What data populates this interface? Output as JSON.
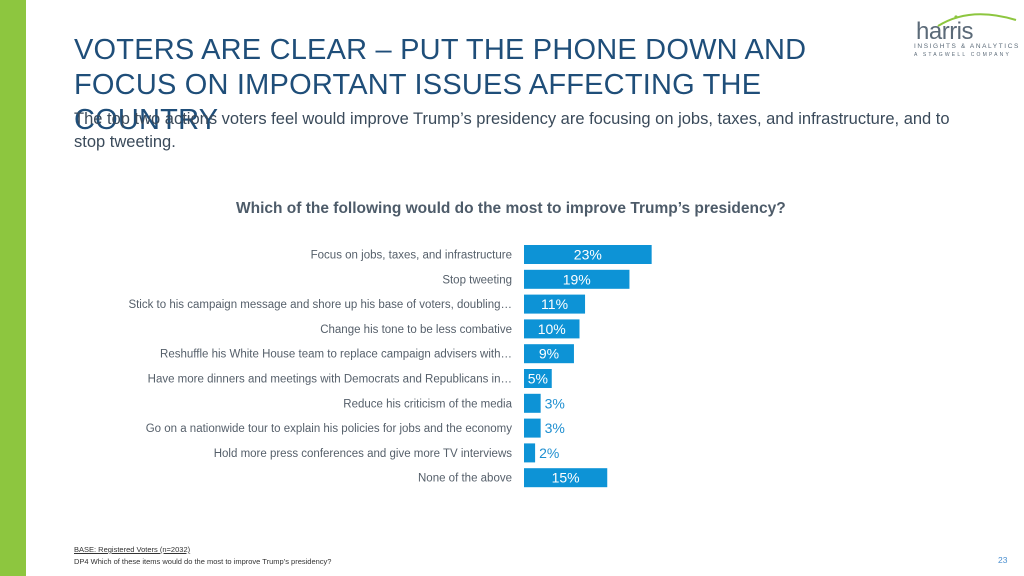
{
  "header": {
    "title": "VOTERS ARE CLEAR – PUT THE PHONE DOWN AND FOCUS ON IMPORTANT ISSUES AFFECTING THE COUNTRY",
    "subtitle": "The top two actions voters feel would improve Trump’s presidency are focusing on jobs, taxes, and infrastructure, and to stop tweeting."
  },
  "logo": {
    "word": "harris",
    "line1": "INSIGHTS & ANALYTICS",
    "line2": "A STAGWELL COMPANY"
  },
  "colors": {
    "accent_green": "#8dc63f",
    "bar_blue": "#0d93d6",
    "title_blue": "#1f4e79"
  },
  "chart_data": {
    "type": "bar",
    "orientation": "horizontal",
    "title": "Which of the following would do the most to improve Trump’s presidency?",
    "categories": [
      "Focus on jobs, taxes, and infrastructure",
      "Stop tweeting",
      "Stick to his campaign message and shore up his base of voters, doubling…",
      "Change his tone to be less combative",
      "Reshuffle his White House team to replace campaign advisers with…",
      "Have more dinners and meetings with Democrats and Republicans in…",
      "Reduce his criticism of the media",
      "Go on a nationwide tour to explain his policies for jobs and the economy",
      "Hold more press conferences and give more TV interviews",
      "None of the above"
    ],
    "values": [
      23,
      19,
      11,
      10,
      9,
      5,
      3,
      3,
      2,
      15
    ],
    "value_labels": [
      "23%",
      "19%",
      "11%",
      "10%",
      "9%",
      "5%",
      "3%",
      "3%",
      "2%",
      "15%"
    ],
    "xlim": [
      0,
      100
    ],
    "grid": false,
    "legend": "none"
  },
  "footer": {
    "base": "BASE: Registered Voters (n=2032)",
    "question": "DP4 Which of these items would do the most to improve Trump’s presidency?",
    "page_number": "23"
  }
}
